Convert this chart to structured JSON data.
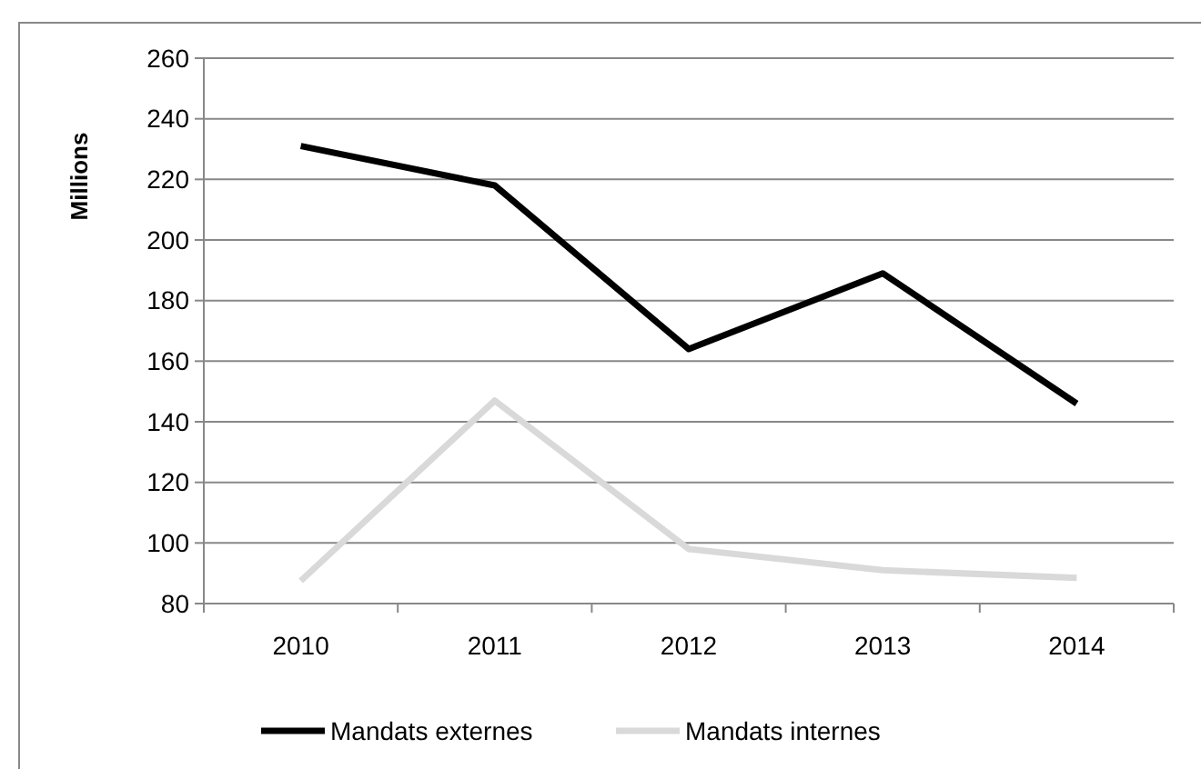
{
  "chart_data": {
    "type": "line",
    "ylabel": "Millions",
    "categories": [
      "2010",
      "2011",
      "2012",
      "2013",
      "2014"
    ],
    "series": [
      {
        "name": "Mandats externes",
        "color": "#000000",
        "values": [
          231,
          218,
          164,
          189,
          146
        ]
      },
      {
        "name": "Mandats internes",
        "color": "#d9d9d9",
        "values": [
          87.5,
          147,
          98,
          91,
          88.5
        ]
      }
    ],
    "ylim": [
      80,
      260
    ],
    "yticks": [
      80,
      100,
      120,
      140,
      160,
      180,
      200,
      220,
      240,
      260
    ],
    "grid": "y",
    "legend": "bottom",
    "marker": "none",
    "line_style": "solid"
  }
}
